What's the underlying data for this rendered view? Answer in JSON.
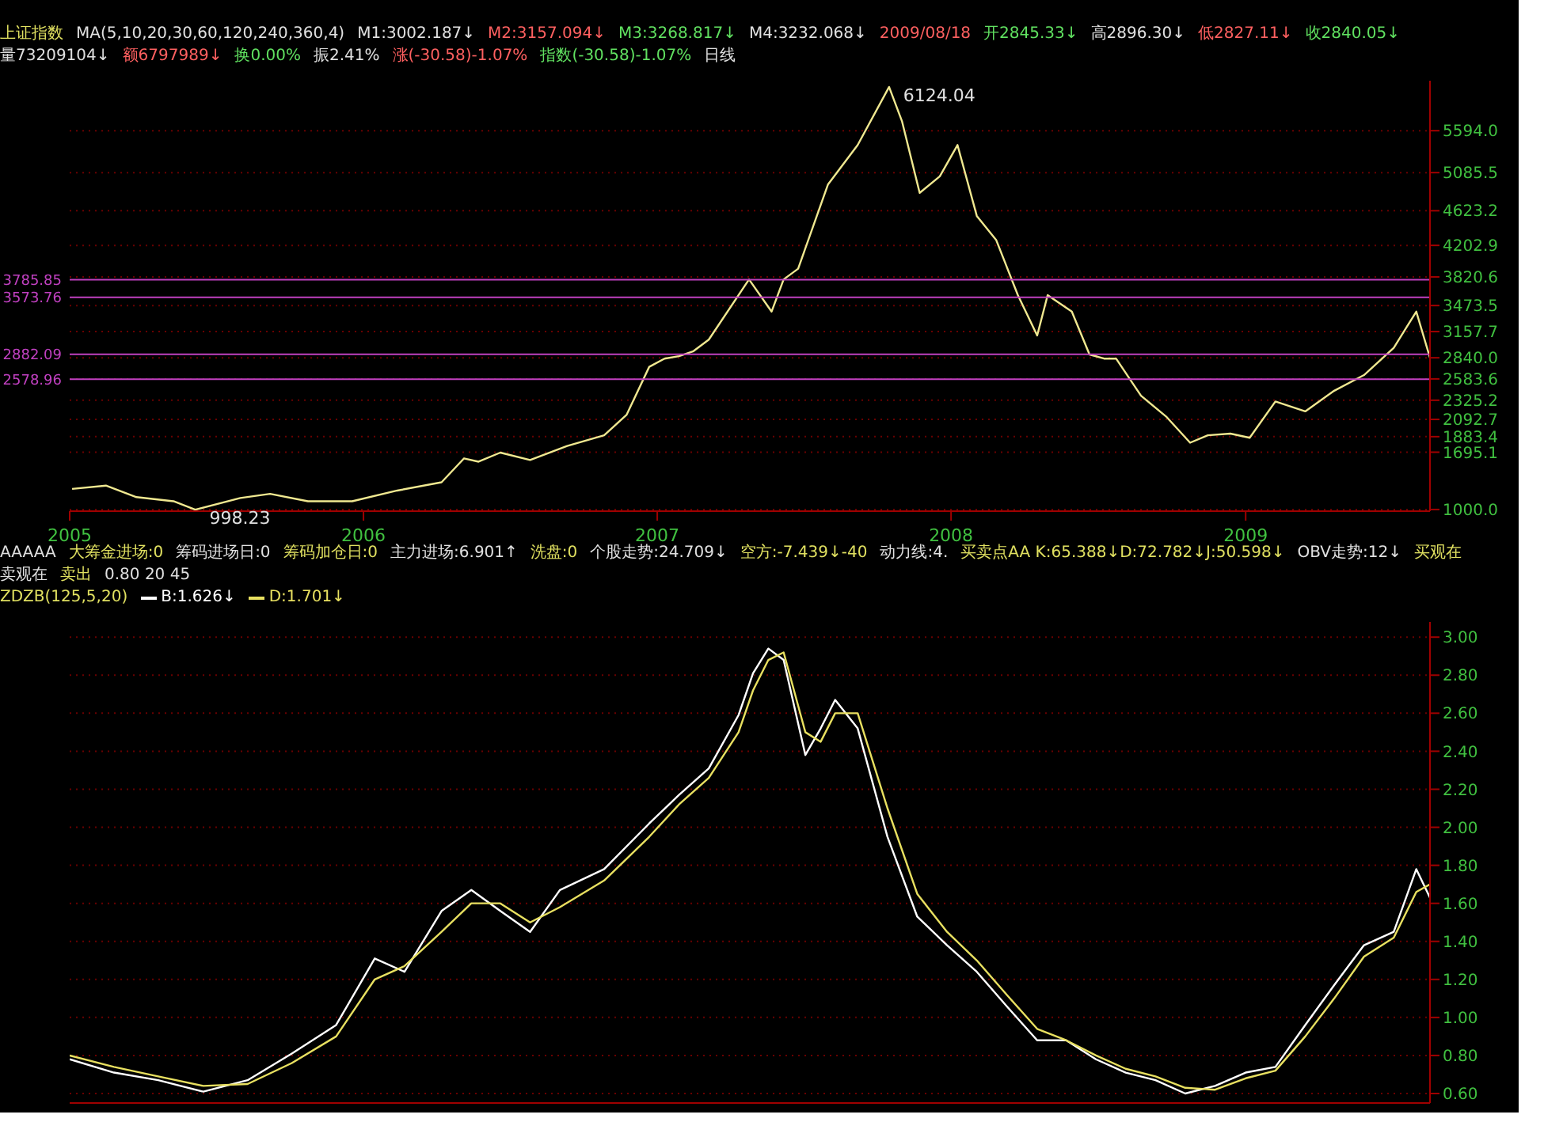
{
  "chart_data": [
    {
      "type": "line",
      "title": "上证指数",
      "subtitle": "MA(5,10,20,30,60,120,240,360,4)",
      "annotations": [
        "M1:3002.187↓",
        "M2:3157.094↓",
        "M3:3268.817↓",
        "M4:3232.068↓",
        "2009/08/18",
        "开2845.33↓",
        "高2896.30↓",
        "低2827.11↓",
        "收2840.05↓",
        "量73209104↓",
        "额6797989↓",
        "换0.00%",
        "振2.41%",
        "涨(-30.58)-1.07%",
        "指数(-30.58)-1.07%",
        {
          "text": "6124.04",
          "x": "2007-10-16",
          "y": 6124.04
        },
        {
          "text": "998.23",
          "x": "2005-06-06",
          "y": 998.23
        },
        "日线"
      ],
      "x": [
        "2005-01-04",
        "2005-02-15",
        "2005-03-25",
        "2005-05-10",
        "2005-06-06",
        "2005-08-01",
        "2005-09-07",
        "2005-10-24",
        "2005-12-18",
        "2006-02-12",
        "2006-04-08",
        "2006-05-06",
        "2006-05-24",
        "2006-06-20",
        "2006-07-27",
        "2006-09-11",
        "2006-10-27",
        "2006-11-24",
        "2006-12-22",
        "2007-01-10",
        "2007-01-28",
        "2007-02-15",
        "2007-03-06",
        "2007-04-25",
        "2007-05-23",
        "2007-06-07",
        "2007-06-25",
        "2007-08-01",
        "2007-09-07",
        "2007-10-16",
        "2007-11-01",
        "2007-11-23",
        "2007-12-18",
        "2008-01-09",
        "2008-02-02",
        "2008-02-26",
        "2008-03-24",
        "2008-04-17",
        "2008-04-30",
        "2008-05-30",
        "2008-06-21",
        "2008-07-09",
        "2008-07-24",
        "2008-08-24",
        "2008-09-25",
        "2008-10-24",
        "2008-11-15",
        "2008-12-13",
        "2009-01-06",
        "2009-02-07",
        "2009-03-16",
        "2009-04-21",
        "2009-05-28",
        "2009-07-04",
        "2009-08-01",
        "2009-08-18"
      ],
      "series": [
        {
          "color": "#f0e890",
          "values": [
            1250,
            1290,
            1150,
            1100,
            998.23,
            1140,
            1190,
            1100,
            1100,
            1230,
            1330,
            1620,
            1580,
            1690,
            1600,
            1770,
            1900,
            2150,
            2730,
            2830,
            2860,
            2920,
            3060,
            3790,
            3400,
            3790,
            3920,
            4940,
            5420,
            6124.04,
            5710,
            4840,
            5040,
            5420,
            4560,
            4270,
            3600,
            3110,
            3600,
            3400,
            2880,
            2830,
            2830,
            2380,
            2120,
            1810,
            1900,
            1920,
            1870,
            2310,
            2190,
            2440,
            2630,
            2960,
            3400,
            2840.05
          ]
        }
      ],
      "xlim": [
        "2005-01-01",
        "2009-08-18"
      ],
      "xticks": [
        "2005",
        "2006",
        "2007",
        "2008",
        "2009"
      ],
      "ylim": [
        980,
        6200
      ],
      "yticks": [
        {
          "value": 1000,
          "label": "1000.0"
        },
        {
          "value": 1695.1,
          "label": "1695.1"
        },
        {
          "value": 1883.4,
          "label": "1883.4"
        },
        {
          "value": 2092.7,
          "label": "2092.7"
        },
        {
          "value": 2325.2,
          "label": "2325.2"
        },
        {
          "value": 2583.6,
          "label": "2583.6"
        },
        {
          "value": 2840.05,
          "label": "2840.0"
        },
        {
          "value": 3157.7,
          "label": "3157.7"
        },
        {
          "value": 3473.5,
          "label": "3473.5"
        },
        {
          "value": 3820.6,
          "label": "3820.6"
        },
        {
          "value": 4202.9,
          "label": "4202.9"
        },
        {
          "value": 4623.2,
          "label": "4623.2"
        },
        {
          "value": 5085.5,
          "label": "5085.5"
        },
        {
          "value": 5594.0,
          "label": "5594.0"
        }
      ],
      "ref_lines": [
        {
          "axis": "y",
          "value": 3785.85,
          "label": "3785.85",
          "color": "#c040c0"
        },
        {
          "axis": "y",
          "value": 3573.76,
          "label": "3573.76",
          "color": "#c040c0"
        },
        {
          "axis": "y",
          "value": 2882.09,
          "label": "2882.09",
          "color": "#c040c0"
        },
        {
          "axis": "y",
          "value": 2578.96,
          "label": "2578.96",
          "color": "#c040c0"
        }
      ],
      "grid": "y"
    },
    {
      "type": "line",
      "title": "ZDZB(125,5,20)",
      "annotations": [
        "AAAAA",
        "大筹金进场:0",
        "筹码进场日:0",
        "筹码加仓日:0",
        "主力进场:6.901↑",
        "洗盘:0",
        "个股走势:24.709↓",
        "空方:-7.439↓-40",
        "动力线:4.",
        "买卖点AA K:65.388↓D:72.782↓J:50.598↓",
        "OBV走势:12↓",
        "买观在",
        "卖观在",
        "卖出",
        "0.80 20 45"
      ],
      "x": [
        "2005-01-01",
        "2005-02-25",
        "2005-04-21",
        "2005-06-16",
        "2005-08-10",
        "2005-10-04",
        "2005-11-28",
        "2006-01-15",
        "2006-02-21",
        "2006-04-08",
        "2006-05-15",
        "2006-06-20",
        "2006-07-27",
        "2006-09-02",
        "2006-10-27",
        "2006-12-22",
        "2007-01-28",
        "2007-03-06",
        "2007-04-12",
        "2007-04-30",
        "2007-05-19",
        "2007-06-07",
        "2007-07-04",
        "2007-07-23",
        "2007-08-10",
        "2007-09-07",
        "2007-10-14",
        "2007-11-20",
        "2007-12-27",
        "2008-02-02",
        "2008-03-10",
        "2008-04-17",
        "2008-05-23",
        "2008-06-29",
        "2008-08-05",
        "2008-09-11",
        "2008-10-18",
        "2008-11-24",
        "2009-01-01",
        "2009-02-07",
        "2009-03-16",
        "2009-04-21",
        "2009-05-28",
        "2009-07-04",
        "2009-08-01",
        "2009-08-18"
      ],
      "series": [
        {
          "name": "B:1.626↓",
          "color": "#ffffff",
          "values": [
            0.78,
            0.71,
            0.67,
            0.61,
            0.67,
            0.81,
            0.96,
            1.31,
            1.24,
            1.56,
            1.67,
            1.56,
            1.45,
            1.67,
            1.78,
            2.02,
            2.17,
            2.31,
            2.59,
            2.81,
            2.94,
            2.88,
            2.38,
            2.52,
            2.67,
            2.52,
            1.95,
            1.53,
            1.38,
            1.24,
            1.06,
            0.88,
            0.88,
            0.78,
            0.71,
            0.67,
            0.6,
            0.64,
            0.71,
            0.74,
            0.96,
            1.17,
            1.38,
            1.45,
            1.78,
            1.63
          ]
        },
        {
          "name": "D:1.701↓",
          "color": "#e8e060",
          "values": [
            0.8,
            0.74,
            0.69,
            0.64,
            0.65,
            0.76,
            0.9,
            1.2,
            1.27,
            1.45,
            1.6,
            1.6,
            1.5,
            1.58,
            1.72,
            1.95,
            2.12,
            2.26,
            2.5,
            2.72,
            2.88,
            2.92,
            2.5,
            2.45,
            2.6,
            2.6,
            2.1,
            1.65,
            1.45,
            1.3,
            1.12,
            0.94,
            0.88,
            0.8,
            0.73,
            0.69,
            0.63,
            0.62,
            0.68,
            0.72,
            0.9,
            1.1,
            1.32,
            1.42,
            1.66,
            1.7
          ]
        }
      ],
      "xlim": [
        "2005-01-01",
        "2009-08-18"
      ],
      "ylim": [
        0.55,
        3.08
      ],
      "yticks": [
        {
          "value": 0.6,
          "label": "0.60"
        },
        {
          "value": 0.8,
          "label": "0.80"
        },
        {
          "value": 1.0,
          "label": "1.00"
        },
        {
          "value": 1.2,
          "label": "1.20"
        },
        {
          "value": 1.4,
          "label": "1.40"
        },
        {
          "value": 1.6,
          "label": "1.60"
        },
        {
          "value": 1.8,
          "label": "1.80"
        },
        {
          "value": 2.0,
          "label": "2.00"
        },
        {
          "value": 2.2,
          "label": "2.20"
        },
        {
          "value": 2.4,
          "label": "2.40"
        },
        {
          "value": 2.6,
          "label": "2.60"
        },
        {
          "value": 2.8,
          "label": "2.80"
        },
        {
          "value": 3.0,
          "label": "3.00"
        }
      ],
      "tick_labels": "y",
      "legend": "top left",
      "grid": "y"
    }
  ]
}
